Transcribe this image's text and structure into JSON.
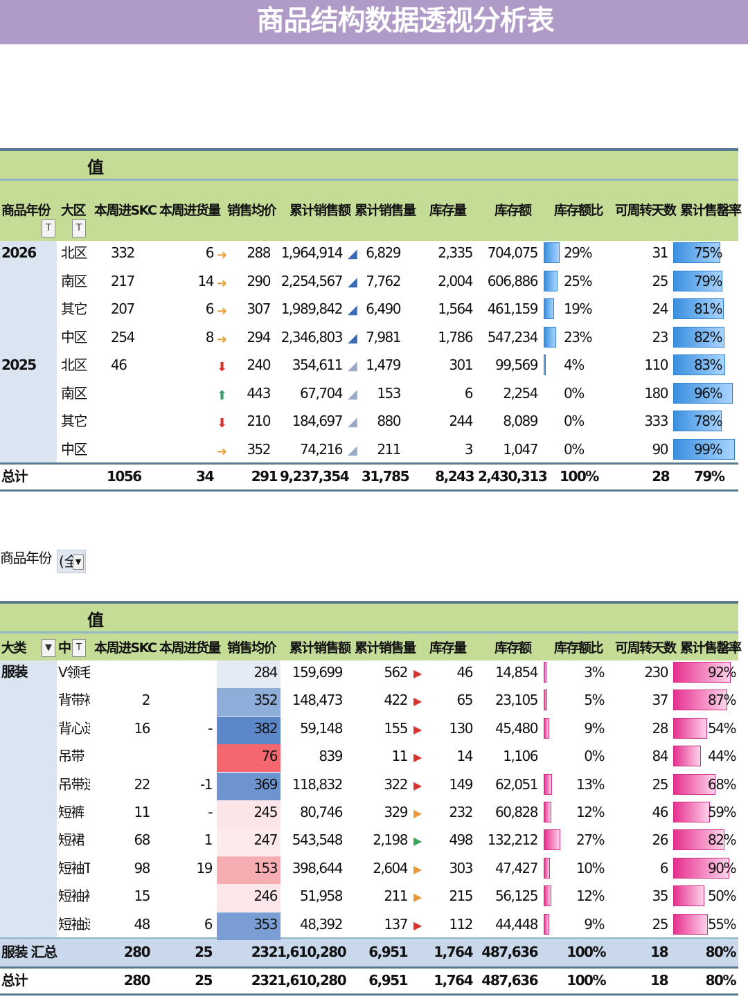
{
  "title": "商品结构数据透视分析表",
  "values_label": "值",
  "table1": {
    "headers": [
      "商品年份",
      "大区",
      "本周进SKC",
      "本周进货量",
      "销售均价",
      "累计销售额",
      "累计销售量",
      "库存量",
      "库存额",
      "库存额比",
      "可周转天数",
      "累计售罄率"
    ],
    "rows": [
      {
        "year": "2026",
        "region": "北区",
        "skc": "332",
        "qty": "6",
        "trend": "flat",
        "price": "288",
        "sales": "1,964,914",
        "vol": "6,829",
        "stock": "2,335",
        "stock_amt": "704,075",
        "ratio": "29%",
        "ratio_val": 0.29,
        "days": "31",
        "sell": "75%",
        "sell_val": 0.75
      },
      {
        "year": "",
        "region": "南区",
        "skc": "217",
        "qty": "14",
        "trend": "flat",
        "price": "290",
        "sales": "2,254,567",
        "vol": "7,762",
        "stock": "2,004",
        "stock_amt": "606,886",
        "ratio": "25%",
        "ratio_val": 0.25,
        "days": "25",
        "sell": "79%",
        "sell_val": 0.79
      },
      {
        "year": "",
        "region": "其它",
        "skc": "207",
        "qty": "6",
        "trend": "flat",
        "price": "307",
        "sales": "1,989,842",
        "vol": "6,490",
        "stock": "1,564",
        "stock_amt": "461,159",
        "ratio": "19%",
        "ratio_val": 0.19,
        "days": "24",
        "sell": "81%",
        "sell_val": 0.81
      },
      {
        "year": "",
        "region": "中区",
        "skc": "254",
        "qty": "8",
        "trend": "flat",
        "price": "294",
        "sales": "2,346,803",
        "vol": "7,981",
        "stock": "1,786",
        "stock_amt": "547,234",
        "ratio": "23%",
        "ratio_val": 0.23,
        "days": "23",
        "sell": "82%",
        "sell_val": 0.82
      },
      {
        "year": "2025",
        "region": "北区",
        "skc": "46",
        "qty": "",
        "trend": "down",
        "price": "240",
        "sales": "354,611",
        "vol": "1,479",
        "stock": "301",
        "stock_amt": "99,569",
        "ratio": "4%",
        "ratio_val": 0.04,
        "days": "110",
        "sell": "83%",
        "sell_val": 0.83
      },
      {
        "year": "",
        "region": "南区",
        "skc": "",
        "qty": "",
        "trend": "up",
        "price": "443",
        "sales": "67,704",
        "vol": "153",
        "stock": "6",
        "stock_amt": "2,254",
        "ratio": "0%",
        "ratio_val": 0.0,
        "days": "180",
        "sell": "96%",
        "sell_val": 0.96
      },
      {
        "year": "",
        "region": "其它",
        "skc": "",
        "qty": "",
        "trend": "down",
        "price": "210",
        "sales": "184,697",
        "vol": "880",
        "stock": "244",
        "stock_amt": "8,089",
        "ratio": "0%",
        "ratio_val": 0.0,
        "days": "333",
        "sell": "78%",
        "sell_val": 0.78
      },
      {
        "year": "",
        "region": "中区",
        "skc": "",
        "qty": "",
        "trend": "flat",
        "price": "352",
        "sales": "74,216",
        "vol": "211",
        "stock": "3",
        "stock_amt": "1,047",
        "ratio": "0%",
        "ratio_val": 0.0,
        "days": "90",
        "sell": "99%",
        "sell_val": 0.99
      }
    ],
    "total": {
      "label": "总计",
      "skc": "1056",
      "qty": "34",
      "price": "291",
      "sales": "9,237,354",
      "vol": "31,785",
      "stock": "8,243",
      "stock_amt": "2,430,313",
      "ratio": "100%",
      "days": "28",
      "sell": "79%"
    }
  },
  "filter": {
    "label": "商品年份",
    "value": "(全"
  },
  "table2": {
    "headers": [
      "大类",
      "中",
      "本周进SKC",
      "本周进货量",
      "销售均价",
      "累计销售额",
      "累计销售量",
      "库存量",
      "库存额",
      "库存额比",
      "可周转天数",
      "累计售罄率"
    ],
    "category": "服装",
    "rows": [
      {
        "mid": "V领毛衣",
        "skc": "",
        "qty": "",
        "price": "284",
        "heat": "#e4ebf5",
        "sales": "159,699",
        "vol": "562",
        "flag": "#d9342b",
        "stock": "46",
        "stock_amt": "14,854",
        "ratio": "3%",
        "ratio_val": 0.03,
        "days": "230",
        "sell": "92%",
        "sell_val": 0.92
      },
      {
        "mid": "背带裙",
        "skc": "2",
        "qty": "",
        "price": "352",
        "heat": "#8fadd9",
        "sales": "148,473",
        "vol": "422",
        "flag": "#d9342b",
        "stock": "65",
        "stock_amt": "23,105",
        "ratio": "5%",
        "ratio_val": 0.05,
        "days": "37",
        "sell": "87%",
        "sell_val": 0.87
      },
      {
        "mid": "背心连",
        "skc": "16",
        "qty": "-",
        "price": "382",
        "heat": "#5b87c8",
        "sales": "59,148",
        "vol": "155",
        "flag": "#d9342b",
        "stock": "130",
        "stock_amt": "45,480",
        "ratio": "9%",
        "ratio_val": 0.09,
        "days": "28",
        "sell": "54%",
        "sell_val": 0.54
      },
      {
        "mid": "吊带",
        "skc": "",
        "qty": "",
        "price": "76",
        "heat": "#f4676e",
        "sales": "839",
        "vol": "11",
        "flag": "#d9342b",
        "stock": "14",
        "stock_amt": "1,106",
        "ratio": "0%",
        "ratio_val": 0.0,
        "days": "84",
        "sell": "44%",
        "sell_val": 0.44
      },
      {
        "mid": "吊带连",
        "skc": "22",
        "qty": "-1",
        "price": "369",
        "heat": "#6e94cf",
        "sales": "118,832",
        "vol": "322",
        "flag": "#d9342b",
        "stock": "149",
        "stock_amt": "62,051",
        "ratio": "13%",
        "ratio_val": 0.13,
        "days": "25",
        "sell": "68%",
        "sell_val": 0.68
      },
      {
        "mid": "短裤",
        "skc": "11",
        "qty": "-",
        "price": "245",
        "heat": "#fbe5e8",
        "sales": "80,746",
        "vol": "329",
        "flag": "#e89a3c",
        "stock": "232",
        "stock_amt": "60,828",
        "ratio": "12%",
        "ratio_val": 0.12,
        "days": "46",
        "sell": "59%",
        "sell_val": 0.59
      },
      {
        "mid": "短裙",
        "skc": "68",
        "qty": "1",
        "price": "247",
        "heat": "#fbe9ec",
        "sales": "543,548",
        "vol": "2,198",
        "flag": "#3aa657",
        "stock": "498",
        "stock_amt": "132,212",
        "ratio": "27%",
        "ratio_val": 0.27,
        "days": "26",
        "sell": "82%",
        "sell_val": 0.82
      },
      {
        "mid": "短袖T",
        "skc": "98",
        "qty": "19",
        "price": "153",
        "heat": "#f7aeb3",
        "sales": "398,644",
        "vol": "2,604",
        "flag": "#e89a3c",
        "stock": "303",
        "stock_amt": "47,427",
        "ratio": "10%",
        "ratio_val": 0.1,
        "days": "6",
        "sell": "90%",
        "sell_val": 0.9
      },
      {
        "mid": "短袖衬",
        "skc": "15",
        "qty": "",
        "price": "246",
        "heat": "#fbe7ea",
        "sales": "51,958",
        "vol": "211",
        "flag": "#e89a3c",
        "stock": "215",
        "stock_amt": "56,125",
        "ratio": "12%",
        "ratio_val": 0.12,
        "days": "35",
        "sell": "50%",
        "sell_val": 0.5
      },
      {
        "mid": "短袖连",
        "skc": "48",
        "qty": "6",
        "price": "353",
        "heat": "#7a9dd3",
        "sales": "48,392",
        "vol": "137",
        "flag": "#d9342b",
        "stock": "112",
        "stock_amt": "44,448",
        "ratio": "9%",
        "ratio_val": 0.09,
        "days": "25",
        "sell": "55%",
        "sell_val": 0.55
      }
    ],
    "subtotal": {
      "label": "服装 汇总",
      "skc": "280",
      "qty": "25",
      "price": "232",
      "sales": "1,610,280",
      "vol": "6,951",
      "stock": "1,764",
      "stock_amt": "487,636",
      "ratio": "100%",
      "days": "18",
      "sell": "80%"
    },
    "total": {
      "label": "总计",
      "skc": "280",
      "qty": "25",
      "price": "232",
      "sales": "1,610,280",
      "vol": "6,951",
      "stock": "1,764",
      "stock_amt": "487,636",
      "ratio": "100%",
      "days": "18",
      "sell": "80%"
    }
  }
}
